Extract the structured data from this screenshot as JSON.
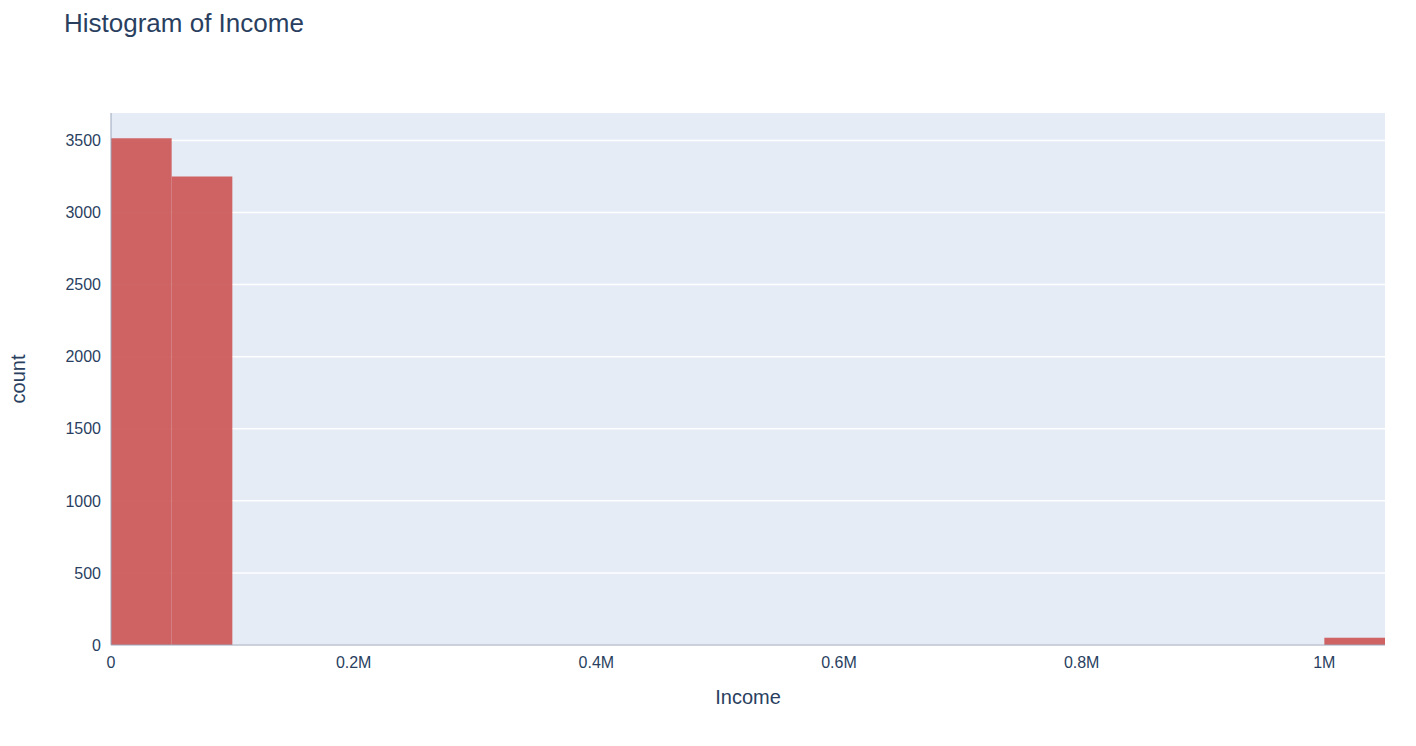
{
  "chart_data": {
    "type": "histogram",
    "title": "Histogram of Income",
    "x_label": "Income",
    "y_label": "count",
    "bins": [
      0,
      50000,
      100000,
      150000,
      200000,
      250000,
      300000,
      350000,
      400000,
      450000,
      500000,
      550000,
      600000,
      650000,
      700000,
      750000,
      800000,
      850000,
      900000,
      950000,
      1000000,
      1050000
    ],
    "values": [
      3514,
      3250,
      0,
      0,
      0,
      0,
      0,
      0,
      0,
      0,
      0,
      0,
      0,
      0,
      0,
      0,
      0,
      0,
      0,
      0,
      50
    ],
    "color": "#cd5c5c",
    "xlim": [
      0,
      1050000
    ],
    "xticks": [
      0,
      {
        "value": 200000,
        "label": "0.2M"
      },
      {
        "value": 400000,
        "label": "0.4M"
      },
      {
        "value": 600000,
        "label": "0.6M"
      },
      {
        "value": 800000,
        "label": "0.8M"
      },
      {
        "value": 1000000,
        "label": "1M"
      }
    ],
    "ylim": [
      0,
      3690
    ],
    "yticks": [
      0,
      500,
      1000,
      1500,
      2000,
      2500,
      3000,
      3500
    ],
    "grid": true
  }
}
